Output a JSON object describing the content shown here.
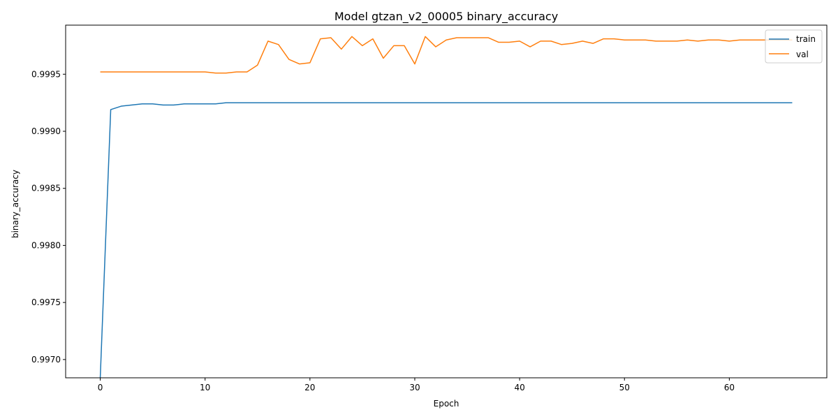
{
  "chart_data": {
    "type": "line",
    "title": "Model gtzan_v2_00005 binary_accuracy",
    "xlabel": "Epoch",
    "ylabel": "binary_accuracy",
    "xlim": [
      -3.3,
      69.3
    ],
    "ylim": [
      0.99684,
      0.99993
    ],
    "xticks": [
      0,
      10,
      20,
      30,
      40,
      50,
      60
    ],
    "yticks": [
      0.997,
      0.9975,
      0.998,
      0.9985,
      0.999,
      0.9995
    ],
    "ytick_labels": [
      "0.9970",
      "0.9975",
      "0.9980",
      "0.9985",
      "0.9990",
      "0.9995"
    ],
    "grid": false,
    "legend_position": "top-right",
    "series": [
      {
        "name": "train",
        "color": "#1f77b4",
        "x": [
          0,
          1,
          2,
          3,
          4,
          5,
          6,
          7,
          8,
          9,
          10,
          11,
          12,
          13,
          14,
          15,
          16,
          17,
          18,
          19,
          20,
          21,
          22,
          23,
          24,
          25,
          26,
          27,
          28,
          29,
          30,
          31,
          32,
          33,
          34,
          35,
          36,
          37,
          38,
          39,
          40,
          41,
          42,
          43,
          44,
          45,
          46,
          47,
          48,
          49,
          50,
          51,
          52,
          53,
          54,
          55,
          56,
          57,
          58,
          59,
          60,
          61,
          62,
          63,
          64,
          65,
          66
        ],
        "values": [
          0.99684,
          0.99919,
          0.99922,
          0.99923,
          0.99924,
          0.99924,
          0.99923,
          0.99923,
          0.99924,
          0.99924,
          0.99924,
          0.99924,
          0.99925,
          0.99925,
          0.99925,
          0.99925,
          0.99925,
          0.99925,
          0.99925,
          0.99925,
          0.99925,
          0.99925,
          0.99925,
          0.99925,
          0.99925,
          0.99925,
          0.99925,
          0.99925,
          0.99925,
          0.99925,
          0.99925,
          0.99925,
          0.99925,
          0.99925,
          0.99925,
          0.99925,
          0.99925,
          0.99925,
          0.99925,
          0.99925,
          0.99925,
          0.99925,
          0.99925,
          0.99925,
          0.99925,
          0.99925,
          0.99925,
          0.99925,
          0.99925,
          0.99925,
          0.99925,
          0.99925,
          0.99925,
          0.99925,
          0.99925,
          0.99925,
          0.99925,
          0.99925,
          0.99925,
          0.99925,
          0.99925,
          0.99925,
          0.99925,
          0.99925,
          0.99925,
          0.99925,
          0.99925
        ]
      },
      {
        "name": "val",
        "color": "#ff7f0e",
        "x": [
          0,
          1,
          2,
          3,
          4,
          5,
          6,
          7,
          8,
          9,
          10,
          11,
          12,
          13,
          14,
          15,
          16,
          17,
          18,
          19,
          20,
          21,
          22,
          23,
          24,
          25,
          26,
          27,
          28,
          29,
          30,
          31,
          32,
          33,
          34,
          35,
          36,
          37,
          38,
          39,
          40,
          41,
          42,
          43,
          44,
          45,
          46,
          47,
          48,
          49,
          50,
          51,
          52,
          53,
          54,
          55,
          56,
          57,
          58,
          59,
          60,
          61,
          62,
          63,
          64,
          65,
          66
        ],
        "values": [
          0.99952,
          0.99952,
          0.99952,
          0.99952,
          0.99952,
          0.99952,
          0.99952,
          0.99952,
          0.99952,
          0.99952,
          0.99952,
          0.99951,
          0.99951,
          0.99952,
          0.99952,
          0.99958,
          0.99979,
          0.99976,
          0.99963,
          0.99959,
          0.9996,
          0.99981,
          0.99982,
          0.99972,
          0.99983,
          0.99975,
          0.99981,
          0.99964,
          0.99975,
          0.99975,
          0.99959,
          0.99983,
          0.99974,
          0.9998,
          0.99982,
          0.99982,
          0.99982,
          0.99982,
          0.99978,
          0.99978,
          0.99979,
          0.99974,
          0.99979,
          0.99979,
          0.99976,
          0.99977,
          0.99979,
          0.99977,
          0.99981,
          0.99981,
          0.9998,
          0.9998,
          0.9998,
          0.99979,
          0.99979,
          0.99979,
          0.9998,
          0.99979,
          0.9998,
          0.9998,
          0.99979,
          0.9998,
          0.9998,
          0.9998,
          0.9998,
          0.9998,
          0.9998
        ]
      }
    ]
  }
}
